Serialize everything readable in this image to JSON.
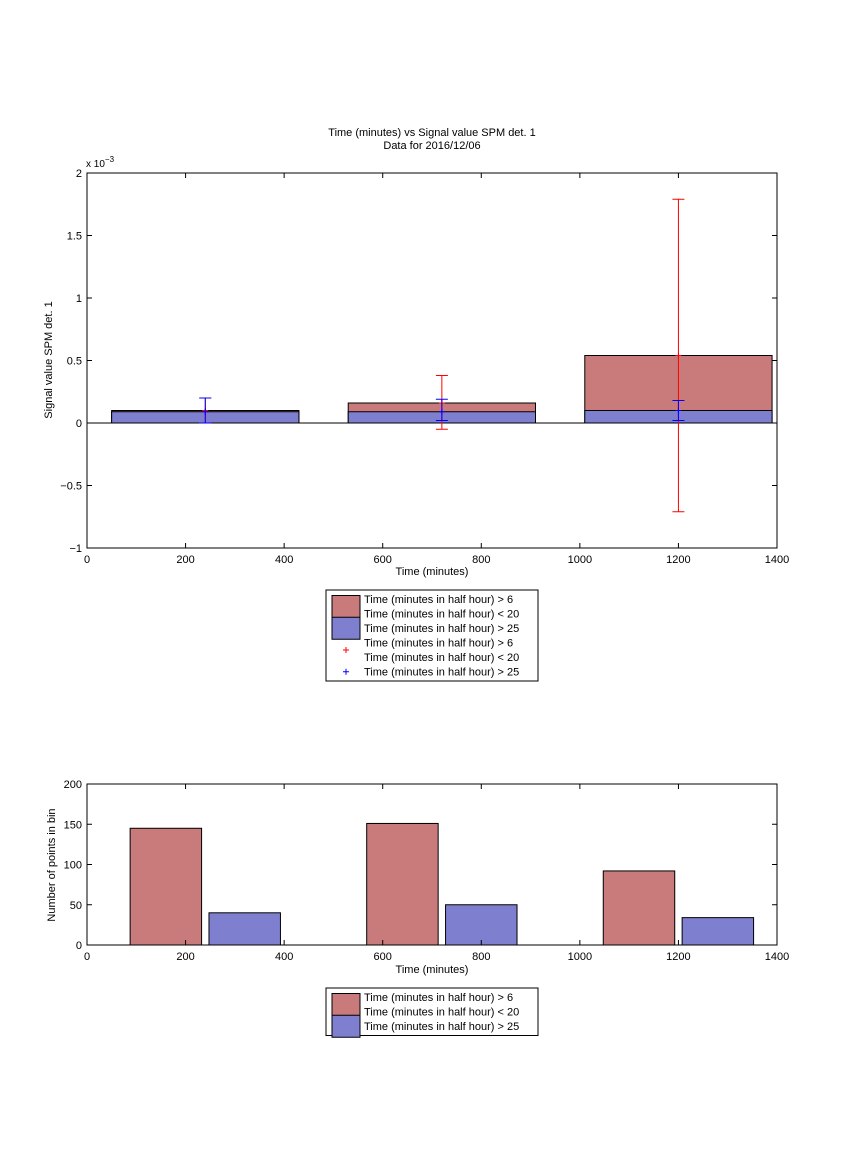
{
  "chart_data": [
    {
      "type": "bar",
      "title": "Time (minutes) vs Signal value SPM det. 1",
      "subtitle": "Data for 2016/12/06",
      "xlabel": "Time (minutes)",
      "ylabel": "Signal value SPM det. 1",
      "exponent_label": "x 10",
      "exponent_power": "−3",
      "xlim": [
        0,
        1400
      ],
      "ylim": [
        -1,
        2
      ],
      "xticks": [
        "0",
        "200",
        "400",
        "600",
        "800",
        "1000",
        "1200",
        "1400"
      ],
      "yticks": [
        "−1",
        "−0.5",
        "0",
        "0.5",
        "1",
        "1.5",
        "2"
      ],
      "grid": false,
      "legend_position": "below",
      "x": [
        240,
        720,
        1200
      ],
      "bar_width": 380,
      "series": [
        {
          "name": "Time (minutes in half hour) > 6",
          "name_line2": "Time (minutes in half hour) < 20",
          "values": [
            0.1,
            0.16,
            0.54
          ],
          "color": "#c97b7b",
          "error_low": [
            0.0,
            -0.05,
            -0.71
          ],
          "error_high": [
            0.2,
            0.38,
            1.79
          ],
          "error_color": "#ff0000"
        },
        {
          "name": "Time (minutes in half hour) > 25",
          "values": [
            0.09,
            0.09,
            0.1
          ],
          "color": "#7f7fcf",
          "error_low": [
            0.0,
            0.02,
            0.02
          ],
          "error_high": [
            0.2,
            0.19,
            0.18
          ],
          "error_color": "#0000ff"
        }
      ],
      "legend": [
        {
          "kind": "patch",
          "color": "#c97b7b",
          "lines": [
            "Time (minutes in half hour) > 6",
            "Time (minutes in half hour) < 20"
          ]
        },
        {
          "kind": "patch",
          "color": "#7f7fcf",
          "lines": [
            "Time (minutes in half hour) > 25"
          ]
        },
        {
          "kind": "marker",
          "color": "#ff0000",
          "lines": [
            "Time (minutes in half hour) > 6",
            "Time (minutes in half hour) < 20"
          ]
        },
        {
          "kind": "marker",
          "color": "#0000ff",
          "lines": [
            "Time (minutes in half hour) > 25"
          ]
        }
      ]
    },
    {
      "type": "bar",
      "xlabel": "Time (minutes)",
      "ylabel": "Number of points in bin",
      "xlim": [
        0,
        1400
      ],
      "ylim": [
        0,
        200
      ],
      "xticks": [
        "0",
        "200",
        "400",
        "600",
        "800",
        "1000",
        "1200",
        "1400"
      ],
      "yticks": [
        "0",
        "50",
        "100",
        "150",
        "200"
      ],
      "grid": false,
      "legend_position": "below",
      "bar_width": 145,
      "series": [
        {
          "name": "Time (minutes in half hour) > 6",
          "name_line2": "Time (minutes in half hour) < 20",
          "x": [
            160,
            640,
            1120
          ],
          "values": [
            145,
            151,
            92
          ],
          "color": "#c97b7b"
        },
        {
          "name": "Time (minutes in half hour) > 25",
          "x": [
            320,
            800,
            1280
          ],
          "values": [
            40,
            50,
            34
          ],
          "color": "#7f7fcf"
        }
      ],
      "legend": [
        {
          "kind": "patch",
          "color": "#c97b7b",
          "lines": [
            "Time (minutes in half hour) > 6",
            "Time (minutes in half hour) < 20"
          ]
        },
        {
          "kind": "patch",
          "color": "#7f7fcf",
          "lines": [
            "Time (minutes in half hour) > 25"
          ]
        }
      ]
    }
  ]
}
